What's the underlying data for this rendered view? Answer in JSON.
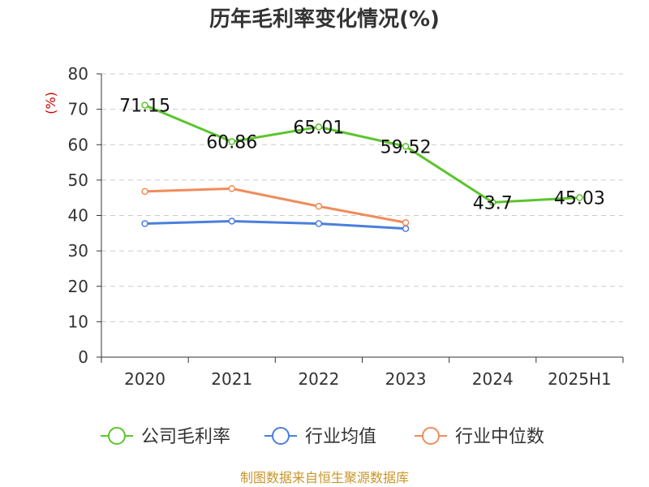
{
  "chart_data": {
    "type": "line",
    "title": "历年毛利率变化情况(%)",
    "ylabel": "(%)",
    "xlabel": "",
    "ylim": [
      0,
      80
    ],
    "yticks": [
      0,
      10,
      20,
      30,
      40,
      50,
      60,
      70,
      80
    ],
    "categories": [
      "2020",
      "2021",
      "2022",
      "2023",
      "2024",
      "2025H1"
    ],
    "grid": true,
    "legend_position": "bottom",
    "series": [
      {
        "name": "公司毛利率",
        "color": "#5cc42e",
        "values": [
          71.15,
          60.86,
          65.01,
          59.52,
          43.7,
          45.03
        ],
        "labels": [
          "71.15",
          "60.86",
          "65.01",
          "59.52",
          "43.7",
          "45.03"
        ]
      },
      {
        "name": "行业均值",
        "color": "#4a7fdc",
        "values": [
          37.7,
          38.4,
          37.7,
          36.3,
          null,
          null
        ]
      },
      {
        "name": "行业中位数",
        "color": "#f08c5a",
        "values": [
          46.8,
          47.6,
          42.6,
          38.0,
          null,
          null
        ]
      }
    ],
    "source": "制图数据来自恒生聚源数据库"
  }
}
